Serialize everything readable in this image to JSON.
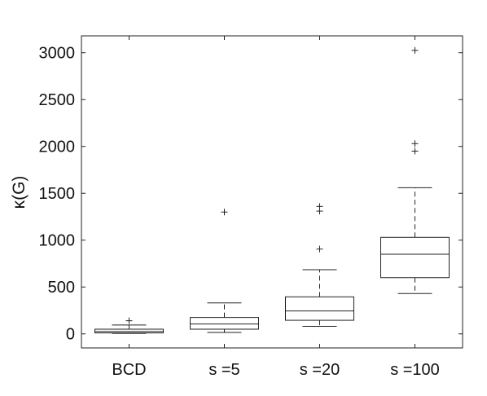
{
  "chart_data": {
    "type": "box",
    "ylabel": "κ(G)",
    "ylim": [
      -150,
      3180
    ],
    "yticks": [
      0,
      500,
      1000,
      1500,
      2000,
      2500,
      3000
    ],
    "ytick_labels": [
      "0",
      "500",
      "1000",
      "1500",
      "2000",
      "2500",
      "3000"
    ],
    "categories": [
      "BCD",
      "s =5",
      "s =20",
      "s =100"
    ],
    "boxes": [
      {
        "category": "BCD",
        "whisker_low": 5,
        "q1": 10,
        "median": 25,
        "q3": 50,
        "whisker_high": 95,
        "outliers": [
          140
        ]
      },
      {
        "category": "s =5",
        "whisker_low": 15,
        "q1": 50,
        "median": 105,
        "q3": 175,
        "whisker_high": 330,
        "outliers": [
          1300
        ]
      },
      {
        "category": "s =20",
        "whisker_low": 80,
        "q1": 145,
        "median": 245,
        "q3": 395,
        "whisker_high": 685,
        "outliers": [
          905,
          1310,
          1360
        ]
      },
      {
        "category": "s =100",
        "whisker_low": 430,
        "q1": 600,
        "median": 850,
        "q3": 1030,
        "whisker_high": 1560,
        "outliers": [
          1950,
          2030,
          3025
        ]
      }
    ],
    "grid": false,
    "legend": "none"
  }
}
